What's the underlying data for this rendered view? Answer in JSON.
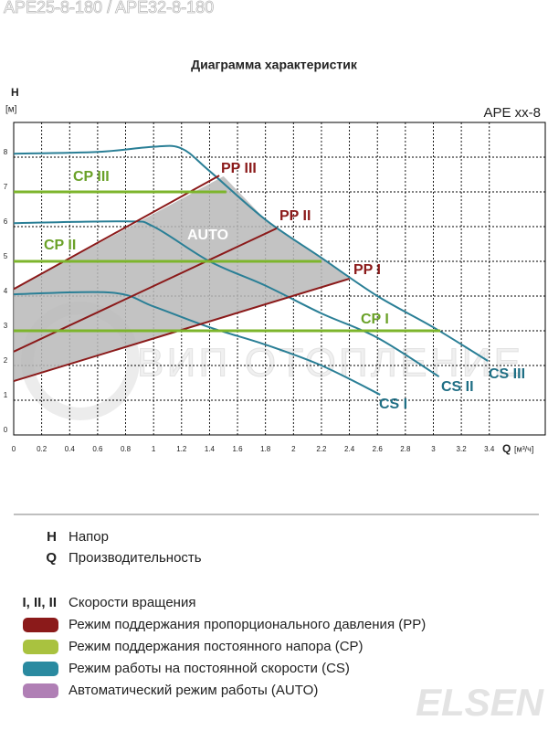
{
  "header": "APE25-8-180  /  APE32-8-180",
  "chart_data": {
    "type": "line",
    "title": "Диаграмма характеристик",
    "ylabel": "H",
    "yunit": "[м]",
    "xlabel": "Q",
    "xunit": "[м³/ч]",
    "annotation": "APE xx-8",
    "watermark": "ВИП ОТОПЛЕНИЕ",
    "xlim": [
      0,
      3.8
    ],
    "ylim": [
      0,
      9
    ],
    "xticks": [
      0,
      0.2,
      0.4,
      0.6,
      0.8,
      1,
      1.2,
      1.4,
      1.6,
      1.8,
      2,
      2.2,
      2.4,
      2.6,
      2.8,
      3,
      3.2,
      3.4
    ],
    "yticks": [
      0,
      1,
      2,
      3,
      4,
      5,
      6,
      7,
      8
    ],
    "grid": true,
    "series": [
      {
        "name": "AUTO",
        "color": "#b9b9b9",
        "fill": true,
        "x": [
          0,
          1.5,
          1.8,
          2.2,
          2.4,
          0
        ],
        "values": [
          4.2,
          7.45,
          6.2,
          5.1,
          4.5,
          1.55
        ]
      },
      {
        "name": "CS I",
        "color": "#2a7f96",
        "x": [
          0,
          0.7,
          1.0,
          1.4,
          1.8,
          2.2,
          2.62
        ],
        "values": [
          4.05,
          4.1,
          3.7,
          3.1,
          2.6,
          2.0,
          1.16
        ]
      },
      {
        "name": "CS II",
        "color": "#2a7f96",
        "x": [
          0,
          0.8,
          1.0,
          1.4,
          1.8,
          2.2,
          2.6,
          3.04
        ],
        "values": [
          6.1,
          6.15,
          6.0,
          5.0,
          4.3,
          3.5,
          2.8,
          1.68
        ]
      },
      {
        "name": "CS III",
        "color": "#2a7f96",
        "x": [
          0,
          0.6,
          1.0,
          1.2,
          1.4,
          1.8,
          2.2,
          2.6,
          3.0,
          3.39
        ],
        "values": [
          8.1,
          8.15,
          8.3,
          8.25,
          7.6,
          6.2,
          5.1,
          4.0,
          3.1,
          2.13
        ]
      },
      {
        "name": "PP I",
        "color": "#8b1a1a",
        "x": [
          0,
          2.4
        ],
        "values": [
          1.55,
          4.5
        ]
      },
      {
        "name": "PP II",
        "color": "#8b1a1a",
        "x": [
          0,
          1.88
        ],
        "values": [
          2.4,
          5.95
        ]
      },
      {
        "name": "PP III",
        "color": "#8b1a1a",
        "x": [
          0,
          1.47
        ],
        "values": [
          4.2,
          7.47
        ]
      },
      {
        "name": "CP I",
        "color": "#7db52c",
        "x": [
          0,
          3.05
        ],
        "values": [
          3,
          3
        ]
      },
      {
        "name": "CP II",
        "color": "#7db52c",
        "x": [
          0,
          2.2
        ],
        "values": [
          5,
          5
        ]
      },
      {
        "name": "CP III",
        "color": "#7db52c",
        "x": [
          0,
          1.52
        ],
        "values": [
          7,
          7
        ]
      }
    ]
  },
  "legend": [
    {
      "key": "H",
      "text": "Напор"
    },
    {
      "key": "Q",
      "text": "Производительность"
    },
    {
      "key": "I, II, II",
      "text": "Скорости вращения"
    }
  ],
  "modes": [
    {
      "color": "#8b1a1a",
      "text": "Режим поддержания пропорционального давления (PP)"
    },
    {
      "color": "#a9c23f",
      "text": "Режим поддержания постоянного напора (CP)"
    },
    {
      "color": "#2a8aa0",
      "text": "Режим работы на постоянной скорости (CS)"
    },
    {
      "color": "#b07fb5",
      "text": "Автоматический режим работы (AUTO)"
    }
  ],
  "logo": "ELSEN"
}
